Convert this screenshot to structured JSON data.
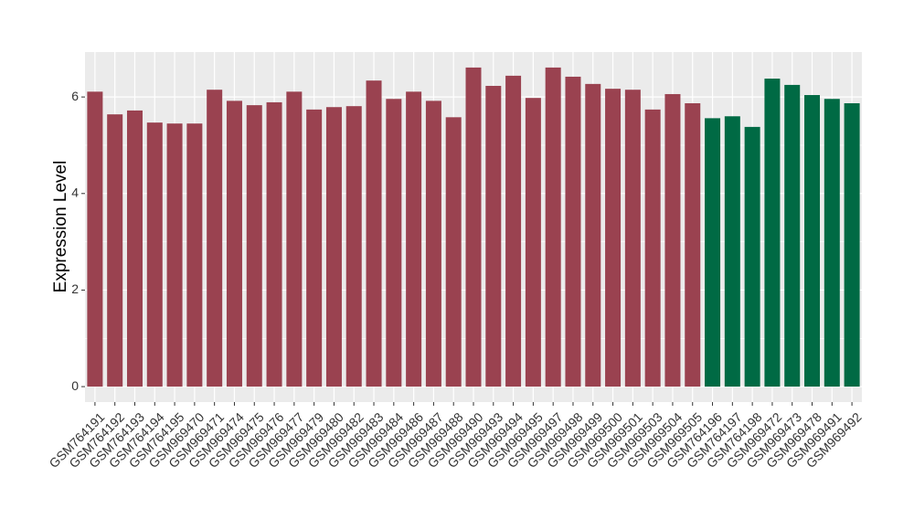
{
  "chart_data": {
    "type": "bar",
    "y_label": "Expression Level",
    "categories": [
      "GSM764191",
      "GSM764192",
      "GSM764193",
      "GSM764194",
      "GSM764195",
      "GSM969470",
      "GSM969471",
      "GSM969474",
      "GSM969475",
      "GSM969476",
      "GSM969477",
      "GSM969479",
      "GSM969480",
      "GSM969482",
      "GSM969483",
      "GSM969484",
      "GSM969486",
      "GSM969487",
      "GSM969488",
      "GSM969490",
      "GSM969493",
      "GSM969494",
      "GSM969495",
      "GSM969497",
      "GSM969498",
      "GSM969499",
      "GSM969500",
      "GSM969501",
      "GSM969503",
      "GSM969504",
      "GSM969505",
      "GSM764196",
      "GSM764197",
      "GSM764198",
      "GSM969472",
      "GSM969473",
      "GSM969478",
      "GSM969491",
      "GSM969492"
    ],
    "values": [
      6.11,
      5.64,
      5.72,
      5.47,
      5.45,
      5.45,
      6.15,
      5.92,
      5.83,
      5.89,
      6.11,
      5.74,
      5.79,
      5.81,
      6.34,
      5.96,
      6.11,
      5.92,
      5.58,
      6.61,
      6.23,
      6.44,
      5.98,
      6.61,
      6.42,
      6.27,
      6.17,
      6.15,
      5.74,
      6.06,
      5.87,
      5.56,
      5.6,
      5.38,
      6.38,
      6.25,
      6.04,
      5.96,
      5.87
    ],
    "colors": [
      "#9a4250",
      "#9a4250",
      "#9a4250",
      "#9a4250",
      "#9a4250",
      "#9a4250",
      "#9a4250",
      "#9a4250",
      "#9a4250",
      "#9a4250",
      "#9a4250",
      "#9a4250",
      "#9a4250",
      "#9a4250",
      "#9a4250",
      "#9a4250",
      "#9a4250",
      "#9a4250",
      "#9a4250",
      "#9a4250",
      "#9a4250",
      "#9a4250",
      "#9a4250",
      "#9a4250",
      "#9a4250",
      "#9a4250",
      "#9a4250",
      "#9a4250",
      "#9a4250",
      "#9a4250",
      "#9a4250",
      "#006a44",
      "#006a44",
      "#006a44",
      "#006a44",
      "#006a44",
      "#006a44",
      "#006a44",
      "#006a44"
    ],
    "ylim": [
      -0.32,
      6.93
    ],
    "yticks": [
      0,
      2,
      4,
      6
    ],
    "grid": true
  }
}
